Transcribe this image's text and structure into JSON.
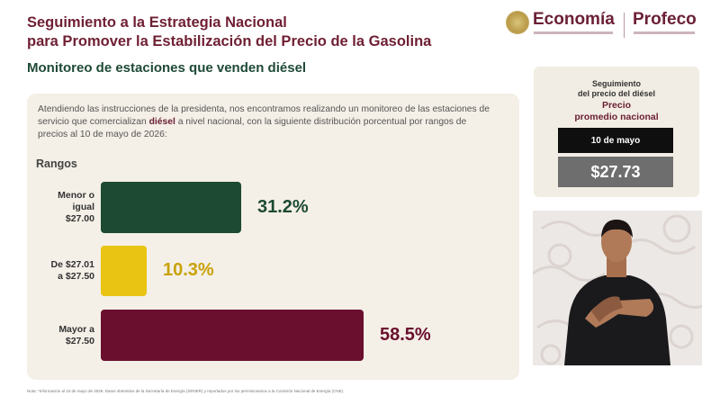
{
  "header": {
    "title_line1": "Seguimiento a la Estrategia Nacional",
    "title_line2": "para Promover la Estabilización del Precio de la Gasolina",
    "subtitle": "Monitoreo de estaciones que venden diésel"
  },
  "logos": {
    "economia": "Economía",
    "profeco": "Profeco"
  },
  "intro": {
    "part1": "Atendiendo las instrucciones de la presidenta, nos encontramos realizando un monitoreo de las estaciones de servicio que comercializan ",
    "bold": "diésel",
    "part2": " a nivel nacional, con la siguiente distribución porcentual por rangos de precios al 10 de mayo de 2026:"
  },
  "rangos_label": "Rangos",
  "chart_data": {
    "type": "bar",
    "categories": [
      "Menor o igual $27.00",
      "De $27.01 a $27.50",
      "Mayor a $27.50"
    ],
    "values": [
      31.2,
      10.3,
      58.5
    ],
    "value_labels": [
      "31.2%",
      "10.3%",
      "58.5%"
    ],
    "colors": [
      "#1c4a33",
      "#e9c412",
      "#6a0f2e"
    ],
    "label_colors": [
      "#1c4a33",
      "#c9a20a",
      "#6a0f2e"
    ],
    "xlim": [
      0,
      60
    ]
  },
  "range_labels": [
    [
      "Menor o",
      "igual",
      "$27.00"
    ],
    [
      "De $27.01",
      "a $27.50"
    ],
    [
      "Mayor a",
      "$27.50"
    ]
  ],
  "price_card": {
    "heading_line1": "Seguimiento",
    "heading_line2": "del precio del diésel",
    "heading_line3": "Precio",
    "heading_line4": "promedio nacional",
    "date": "10 de mayo",
    "price": "$27.73"
  },
  "footnote": "Nota: *Información al 10 de mayo de 2026. Datos obtenidos de la Secretaría de Energía (SENER) y reportados por los permisionarios a la Comisión Nacional de Energía (CNE)."
}
